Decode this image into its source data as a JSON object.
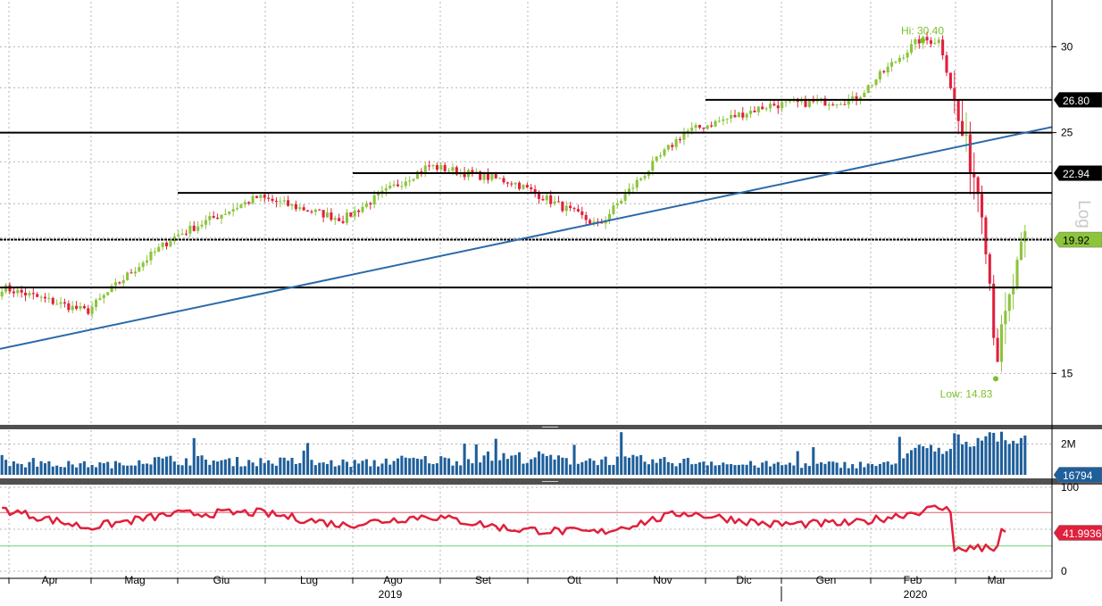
{
  "colors": {
    "up_candle": "#8cc43c",
    "down_candle": "#e0203c",
    "level_line": "#000000",
    "trendline": "#2a6aa8",
    "volume_bar": "#1f5f9a",
    "rsi_line": "#e0203c",
    "rsi_overbought_line": "#e06070",
    "rsi_oversold_line": "#6ed36e",
    "grid": "#b4b4b4",
    "panel_separator": "#505050",
    "hi_low_label": "#7cbf2a",
    "current_price_tag": "#8cc43c",
    "level_tag": "#000000",
    "volume_tag": "#1f5f9a",
    "rsi_tag": "#e0203c"
  },
  "chart_data": [
    {
      "panel": "price",
      "type": "candlestick",
      "scale": "log",
      "ylim": [
        13.5,
        33
      ],
      "y_ticks": [
        15,
        25,
        30
      ],
      "x_month_labels": [
        "Apr",
        "Mag",
        "Giu",
        "Lug",
        "Ago",
        "Set",
        "Ott",
        "Nov",
        "Dic",
        "Gen",
        "Feb",
        "Mar"
      ],
      "x_year_labels": [
        "2019",
        "2020"
      ],
      "axis_scale_label": "Log",
      "annotations": {
        "high_label": "Hi: 30.40",
        "high_value": 30.4,
        "low_label": "Low: 14.83",
        "low_value": 14.83
      },
      "horizontal_levels": [
        {
          "value": 26.8,
          "tag": "26.80",
          "from": "2019-12"
        },
        {
          "value": 25.0,
          "tag": "",
          "from": "2019-03"
        },
        {
          "value": 22.94,
          "tag": "22.94",
          "from": "2019-08"
        },
        {
          "value": 22.0,
          "tag": "",
          "from": "2019-06"
        },
        {
          "value": 19.92,
          "tag": "19.92",
          "from": "2019-03",
          "current_price": true
        },
        {
          "value": 18.0,
          "tag": "",
          "from": "2019-03"
        }
      ],
      "trendline": {
        "start": [
          "2019-03",
          15.8
        ],
        "end": [
          "2020-03",
          25.3
        ]
      },
      "monthly_closes": [
        {
          "month": "2019-03",
          "close": 18.0
        },
        {
          "month": "2019-04",
          "close": 17.1
        },
        {
          "month": "2019-05",
          "close": 20.0
        },
        {
          "month": "2019-06",
          "close": 21.8
        },
        {
          "month": "2019-07",
          "close": 20.8
        },
        {
          "month": "2019-08",
          "close": 23.3
        },
        {
          "month": "2019-09",
          "close": 22.5
        },
        {
          "month": "2019-10",
          "close": 20.5
        },
        {
          "month": "2019-11",
          "close": 25.0
        },
        {
          "month": "2019-12",
          "close": 26.5
        },
        {
          "month": "2020-01",
          "close": 26.8
        },
        {
          "month": "2020-02",
          "close": 30.4
        },
        {
          "month": "2020-03",
          "close": 19.92
        }
      ]
    },
    {
      "panel": "volume",
      "type": "bar",
      "y_ticks": [
        "2M"
      ],
      "last_value_tag": "16794",
      "monthly_volume_millions": [
        {
          "month": "2019-03",
          "volume": 0.8
        },
        {
          "month": "2019-04",
          "volume": 0.7
        },
        {
          "month": "2019-05",
          "volume": 1.0
        },
        {
          "month": "2019-06",
          "volume": 0.9
        },
        {
          "month": "2019-07",
          "volume": 0.8
        },
        {
          "month": "2019-08",
          "volume": 1.0
        },
        {
          "month": "2019-09",
          "volume": 1.2
        },
        {
          "month": "2019-10",
          "volume": 1.0
        },
        {
          "month": "2019-11",
          "volume": 0.9
        },
        {
          "month": "2019-12",
          "volume": 0.7
        },
        {
          "month": "2020-01",
          "volume": 0.7
        },
        {
          "month": "2020-02",
          "volume": 1.6
        },
        {
          "month": "2020-03",
          "volume": 2.1
        }
      ]
    },
    {
      "panel": "rsi",
      "type": "line",
      "ylim": [
        0,
        100
      ],
      "y_ticks": [
        0,
        100
      ],
      "reference_levels": [
        70,
        30
      ],
      "last_value_tag": "41.9936",
      "monthly_rsi": [
        {
          "month": "2019-03",
          "value": 74
        },
        {
          "month": "2019-04",
          "value": 52
        },
        {
          "month": "2019-05",
          "value": 68
        },
        {
          "month": "2019-06",
          "value": 70
        },
        {
          "month": "2019-07",
          "value": 55
        },
        {
          "month": "2019-08",
          "value": 66
        },
        {
          "month": "2019-09",
          "value": 50
        },
        {
          "month": "2019-10",
          "value": 46
        },
        {
          "month": "2019-11",
          "value": 70
        },
        {
          "month": "2019-12",
          "value": 56
        },
        {
          "month": "2020-01",
          "value": 57
        },
        {
          "month": "2020-02",
          "value": 76
        },
        {
          "month": "2020-03",
          "value": 42
        }
      ]
    }
  ]
}
